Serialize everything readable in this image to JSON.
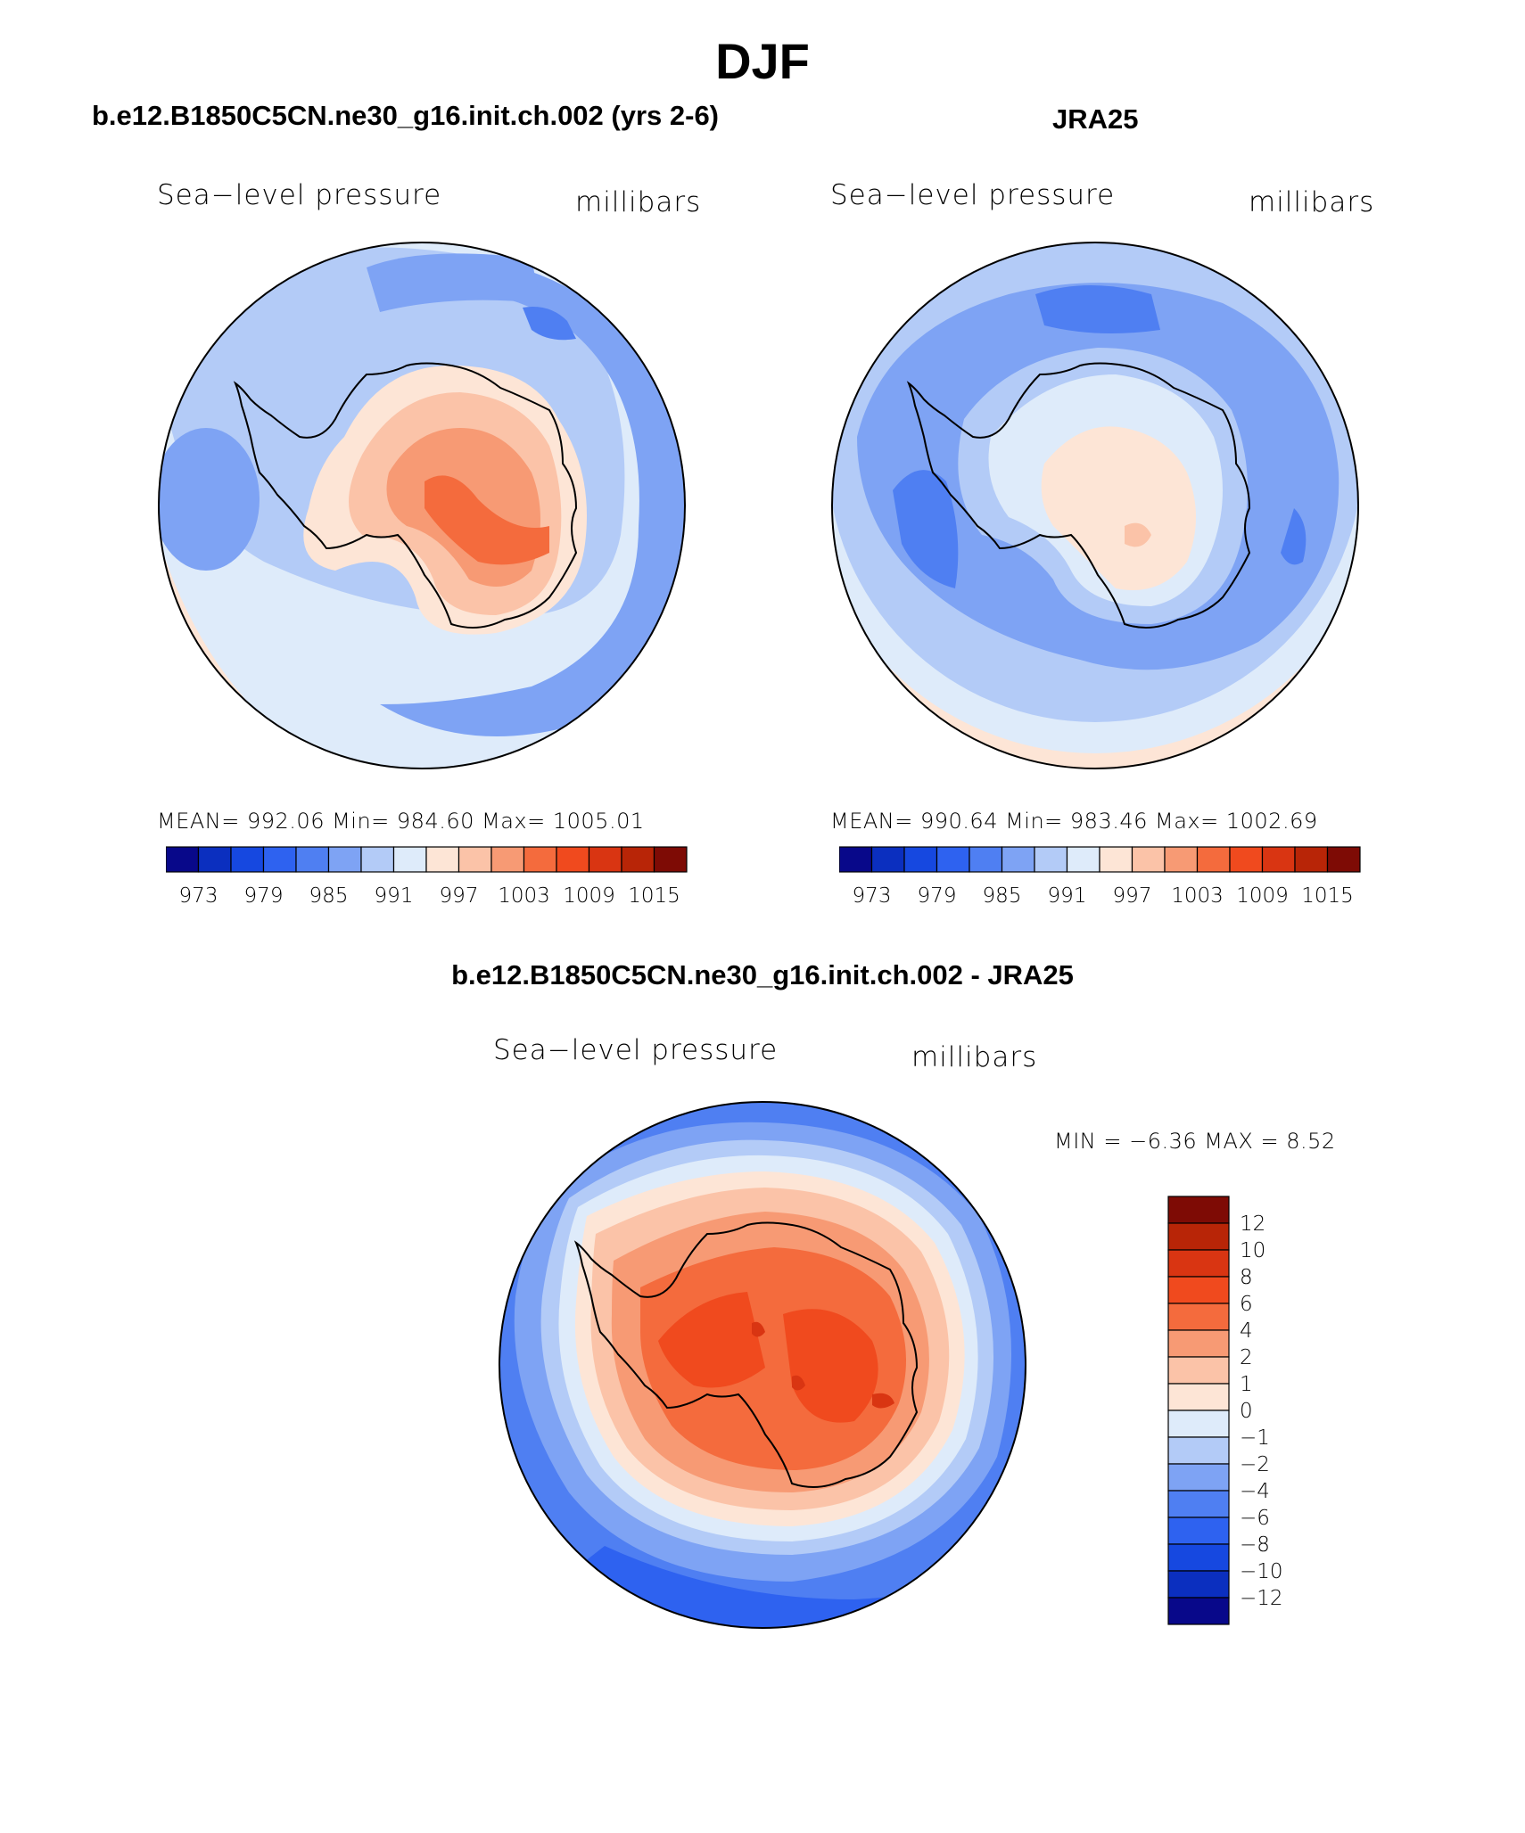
{
  "title": "DJF",
  "panels": {
    "model": {
      "header": "b.e12.B1850C5CN.ne30_g16.init.ch.002 (yrs 2-6)",
      "variable": "Sea−level pressure",
      "units": "millibars",
      "stats": "MEAN=  992.06    Min=  984.60    Max=  1005.01"
    },
    "obs": {
      "header": "JRA25",
      "variable": "Sea−level pressure",
      "units": "millibars",
      "stats": "MEAN=  990.64    Min=  983.46    Max=  1002.69"
    },
    "diff": {
      "header": "b.e12.B1850C5CN.ne30_g16.init.ch.002 - JRA25",
      "variable": "Sea−level pressure",
      "units": "millibars",
      "stats": "MIN =    −6.36  MAX =     8.52"
    }
  },
  "colorbars": {
    "abs_ticks": [
      "973",
      "979",
      "985",
      "991",
      "997",
      "1003",
      "1009",
      "1015"
    ],
    "abs_colors": [
      "#08088a",
      "#0b2fbf",
      "#1648e0",
      "#2e62f0",
      "#4f7ff2",
      "#7ea3f4",
      "#b3cbf7",
      "#deebfa",
      "#fde5d6",
      "#fbc3a8",
      "#f79a74",
      "#f46b3d",
      "#f04a1e",
      "#d93512",
      "#b82507",
      "#7e0b05"
    ],
    "diff_ticks": [
      "12",
      "10",
      "8",
      "6",
      "4",
      "2",
      "1",
      "0",
      "−1",
      "−2",
      "−4",
      "−6",
      "−8",
      "−10",
      "−12"
    ],
    "diff_colors": [
      "#7e0b05",
      "#b82507",
      "#d93512",
      "#f04a1e",
      "#f46b3d",
      "#f79a74",
      "#fbc3a8",
      "#fde5d6",
      "#deebfa",
      "#b3cbf7",
      "#7ea3f4",
      "#4f7ff2",
      "#2e62f0",
      "#1648e0",
      "#0b2fbf",
      "#08088a"
    ]
  }
}
